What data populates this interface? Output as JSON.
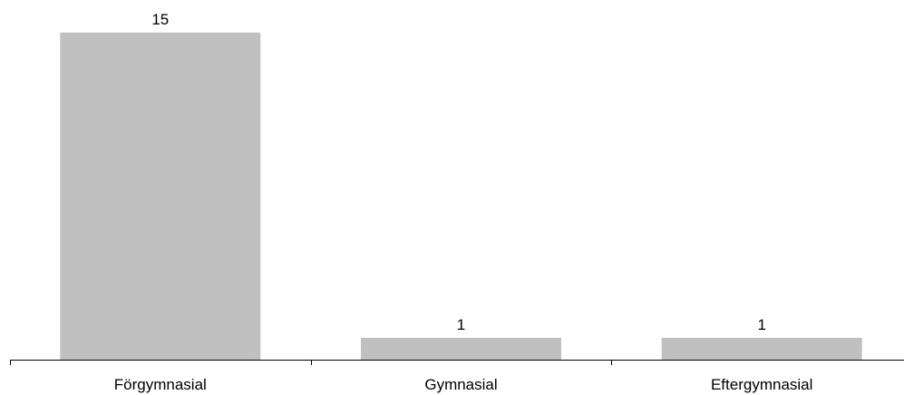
{
  "chart_data": {
    "type": "bar",
    "categories": [
      "Förgymnasial",
      "Gymnasial",
      "Eftergymnasial"
    ],
    "values": [
      15,
      1,
      1
    ],
    "data_labels": [
      "15",
      "1",
      "1"
    ],
    "title": "",
    "xlabel": "",
    "ylabel": "",
    "ylim": [
      0,
      15
    ],
    "grid": false,
    "legend": "none",
    "colors": {
      "bar": "#c0c0c0",
      "axis": "#000000",
      "text": "#000000",
      "background": "#ffffff"
    }
  }
}
